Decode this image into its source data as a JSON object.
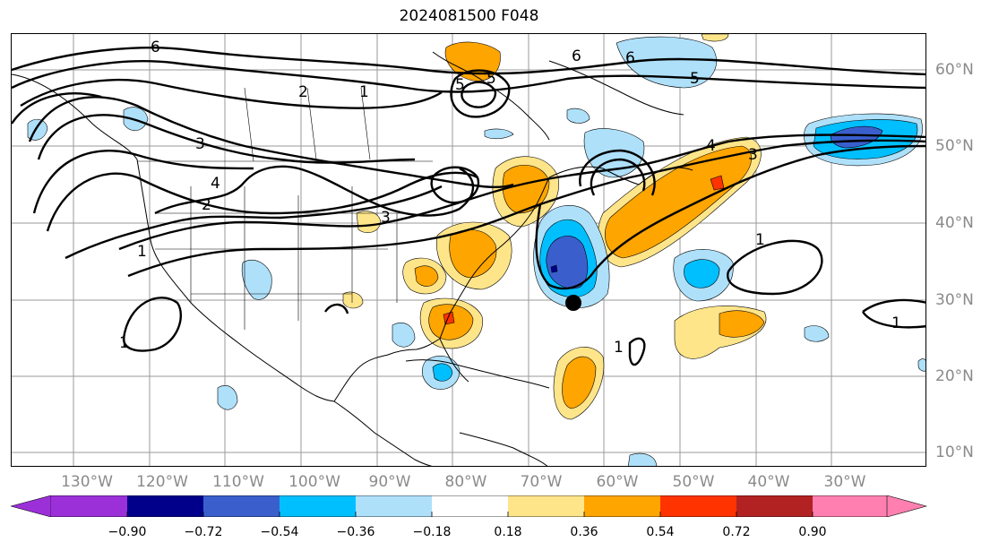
{
  "title": "2024081500 F048",
  "map": {
    "lon_labels": [
      "130°W",
      "120°W",
      "110°W",
      "100°W",
      "90°W",
      "80°W",
      "70°W",
      "60°W",
      "50°W",
      "40°W",
      "30°W"
    ],
    "lat_labels": [
      "60°N",
      "50°N",
      "40°N",
      "30°N",
      "20°N",
      "10°N"
    ],
    "contour_labels": [
      "6",
      "6",
      "5",
      "5",
      "4",
      "4",
      "3",
      "3",
      "3",
      "2",
      "2",
      "1",
      "1",
      "1",
      "1",
      "1",
      "1",
      "5",
      "6"
    ],
    "storm_marker": "storm-center"
  },
  "colorbar": {
    "tick_labels": [
      "−0.90",
      "−0.72",
      "−0.54",
      "−0.36",
      "−0.18",
      "0.18",
      "0.36",
      "0.54",
      "0.72",
      "0.90"
    ],
    "colors": [
      "#9b30d9",
      "#00008b",
      "#3a5fcd",
      "#00bfff",
      "#aee0fa",
      "#ffffff",
      "#ffe58a",
      "#ffa500",
      "#ff3300",
      "#b22222",
      "#ff80b0"
    ]
  }
}
